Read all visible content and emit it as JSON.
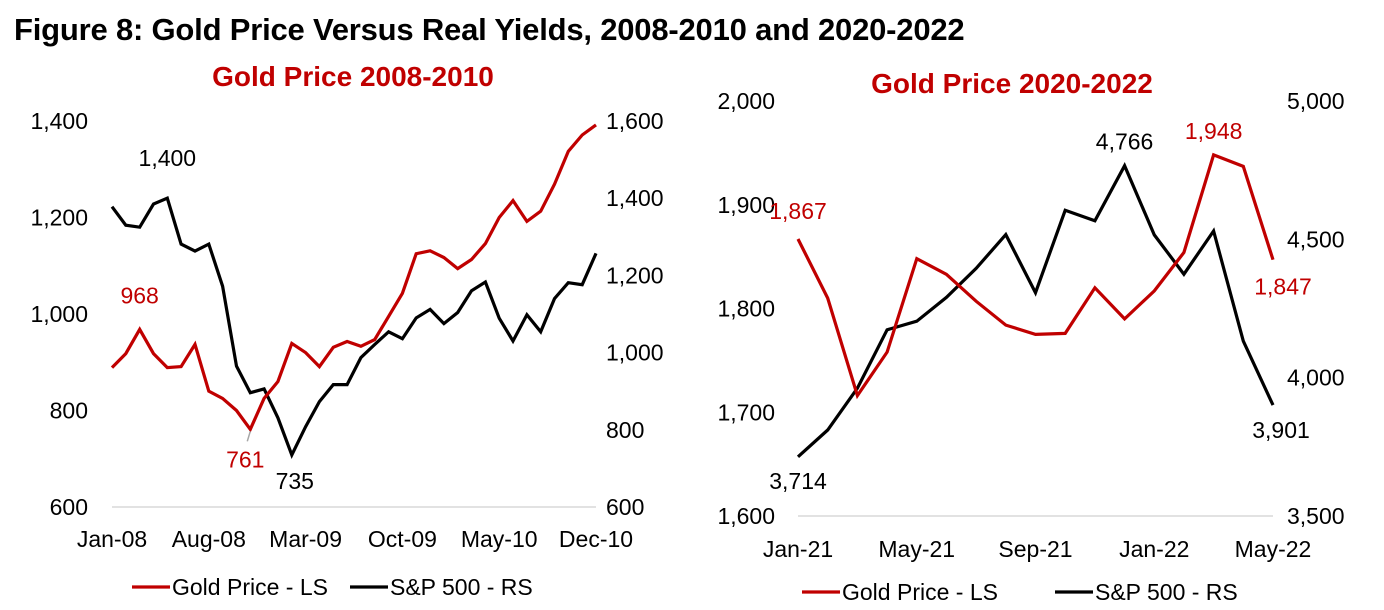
{
  "figure_title": "Figure 8: Gold Price Versus Real Yields, 2008-2010 and 2020-2022",
  "colors": {
    "gold": "#c00000",
    "sp500": "#000000",
    "axis": "#d9d9d9"
  },
  "chart_data": [
    {
      "type": "line",
      "title": "Gold Price 2008-2010",
      "x": [
        "Jan-08",
        "Feb-08",
        "Mar-08",
        "Apr-08",
        "May-08",
        "Jun-08",
        "Jul-08",
        "Aug-08",
        "Sep-08",
        "Oct-08",
        "Nov-08",
        "Dec-08",
        "Jan-09",
        "Feb-09",
        "Mar-09",
        "Apr-09",
        "May-09",
        "Jun-09",
        "Jul-09",
        "Aug-09",
        "Sep-09",
        "Oct-09",
        "Nov-09",
        "Dec-09",
        "Jan-10",
        "Feb-10",
        "Mar-10",
        "Apr-10",
        "May-10",
        "Jun-10",
        "Jul-10",
        "Aug-10",
        "Sep-10",
        "Oct-10",
        "Nov-10",
        "Dec-10"
      ],
      "x_tick_labels": [
        "Jan-08",
        "Aug-08",
        "Mar-09",
        "Oct-09",
        "May-10",
        "Dec-10"
      ],
      "x_tick_indices": [
        0,
        7,
        14,
        21,
        28,
        35
      ],
      "y_left": {
        "label": "LS",
        "range": [
          600,
          1400
        ],
        "ticks": [
          "600",
          "800",
          "1,000",
          "1,200",
          "1,400"
        ],
        "tick_values": [
          600,
          800,
          1000,
          1200,
          1400
        ]
      },
      "y_right": {
        "label": "RS",
        "range": [
          600,
          1600
        ],
        "ticks": [
          "600",
          "800",
          "1,000",
          "1,200",
          "1,400",
          "1,600"
        ],
        "tick_values": [
          600,
          800,
          1000,
          1200,
          1400,
          1600
        ]
      },
      "series": [
        {
          "name": "Gold Price - LS",
          "axis": "left",
          "color": "#c00000",
          "values": [
            889,
            918,
            968,
            918,
            889,
            891,
            937,
            840,
            825,
            800,
            761,
            825,
            860,
            939,
            920,
            891,
            931,
            943,
            933,
            947,
            995,
            1043,
            1125,
            1131,
            1117,
            1094,
            1113,
            1146,
            1200,
            1235,
            1192,
            1213,
            1269,
            1337,
            1371,
            1392
          ]
        },
        {
          "name": "S&P 500 - RS",
          "axis": "right",
          "color": "#000000",
          "values": [
            1378,
            1330,
            1325,
            1385,
            1400,
            1281,
            1263,
            1281,
            1172,
            965,
            896,
            906,
            831,
            735,
            808,
            873,
            917,
            917,
            987,
            1021,
            1054,
            1036,
            1090,
            1112,
            1075,
            1104,
            1160,
            1183,
            1089,
            1030,
            1098,
            1054,
            1140,
            1181,
            1176,
            1257
          ]
        }
      ],
      "annotations": [
        {
          "series": "S&P 500 - RS",
          "index": 4,
          "text": "1,400"
        },
        {
          "series": "Gold Price - LS",
          "index": 2,
          "text": "968"
        },
        {
          "series": "Gold Price - LS",
          "index": 10,
          "text": "761"
        },
        {
          "series": "S&P 500 - RS",
          "index": 13,
          "text": "735"
        }
      ],
      "legend": {
        "position": "bottom",
        "entries": [
          "Gold Price - LS",
          "S&P 500 - RS"
        ]
      },
      "grid": false
    },
    {
      "type": "line",
      "title": "Gold Price 2020-2022",
      "x": [
        "Jan-21",
        "Feb-21",
        "Mar-21",
        "Apr-21",
        "May-21",
        "Jun-21",
        "Jul-21",
        "Aug-21",
        "Sep-21",
        "Oct-21",
        "Nov-21",
        "Dec-21",
        "Jan-22",
        "Feb-22",
        "Mar-22",
        "Apr-22",
        "May-22"
      ],
      "x_tick_labels": [
        "Jan-21",
        "May-21",
        "Sep-21",
        "Jan-22",
        "May-22"
      ],
      "x_tick_indices": [
        0,
        4,
        8,
        12,
        16
      ],
      "y_left": {
        "label": "LS",
        "range": [
          1600,
          2000
        ],
        "ticks": [
          "1,600",
          "1,700",
          "1,800",
          "1,900",
          "2,000"
        ],
        "tick_values": [
          1600,
          1700,
          1800,
          1900,
          2000
        ]
      },
      "y_right": {
        "label": "RS",
        "range": [
          3500,
          5000
        ],
        "ticks": [
          "3,500",
          "4,000",
          "4,500",
          "5,000"
        ],
        "tick_values": [
          3500,
          4000,
          4500,
          5000
        ]
      },
      "series": [
        {
          "name": "Gold Price - LS",
          "axis": "left",
          "color": "#c00000",
          "values": [
            1867,
            1810,
            1716,
            1758,
            1848,
            1833,
            1807,
            1784,
            1775,
            1776,
            1820,
            1790,
            1817,
            1854,
            1948,
            1937,
            1847
          ]
        },
        {
          "name": "S&P 500 - RS",
          "axis": "right",
          "color": "#000000",
          "values": [
            3714,
            3811,
            3962,
            4173,
            4204,
            4290,
            4395,
            4517,
            4307,
            4605,
            4567,
            4766,
            4516,
            4374,
            4530,
            4132,
            3901
          ]
        }
      ],
      "annotations": [
        {
          "series": "Gold Price - LS",
          "index": 0,
          "text": "1,867"
        },
        {
          "series": "S&P 500 - RS",
          "index": 0,
          "text": "3,714"
        },
        {
          "series": "S&P 500 - RS",
          "index": 11,
          "text": "4,766"
        },
        {
          "series": "Gold Price - LS",
          "index": 14,
          "text": "1,948"
        },
        {
          "series": "Gold Price - LS",
          "index": 16,
          "text": "1,847"
        },
        {
          "series": "S&P 500 - RS",
          "index": 16,
          "text": "3,901"
        }
      ],
      "legend": {
        "position": "bottom",
        "entries": [
          "Gold Price - LS",
          "S&P 500 - RS"
        ]
      },
      "grid": false
    }
  ]
}
